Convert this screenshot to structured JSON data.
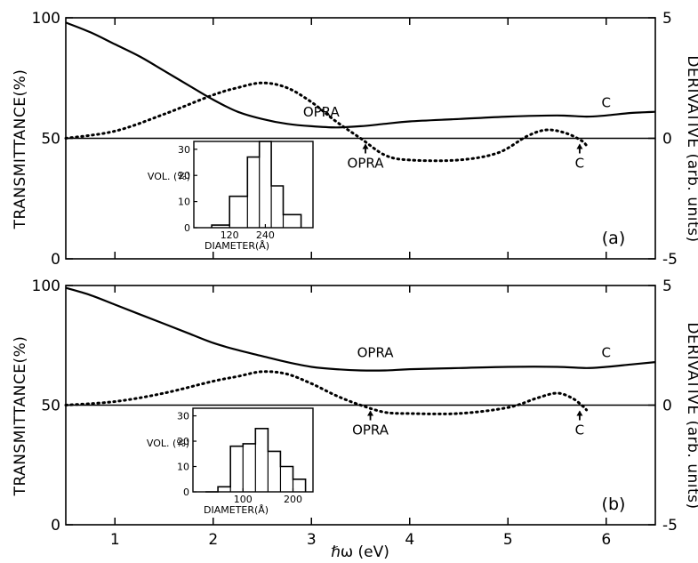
{
  "chart_data": [
    {
      "type": "line",
      "panel_label": "(a)",
      "xlabel": "ℏω (eV)",
      "ylabel": "TRANSMITTANCE(%)",
      "y2label": "DERIVATIVE (arb. units)",
      "xlim": [
        0.5,
        6.5
      ],
      "ylim": [
        0,
        100
      ],
      "y2lim": [
        -5,
        5
      ],
      "xticks": [
        "1",
        "2",
        "3",
        "4",
        "5",
        "6"
      ],
      "yticks": [
        "0",
        "50",
        "100"
      ],
      "y2ticks": [
        "-5",
        "0",
        "5"
      ],
      "series": [
        {
          "style": "solid",
          "axis": "left",
          "x": [
            0.5,
            0.75,
            1.0,
            1.25,
            1.5,
            1.75,
            2.0,
            2.25,
            2.5,
            2.75,
            3.0,
            3.25,
            3.5,
            3.75,
            4.0,
            4.5,
            5.0,
            5.5,
            5.8,
            6.0,
            6.25,
            6.5
          ],
          "y": [
            98,
            94,
            89,
            84,
            78,
            72,
            66,
            61,
            58,
            56,
            55,
            54.5,
            55,
            56,
            57,
            58,
            59,
            59.5,
            59,
            59.5,
            60.5,
            61
          ]
        },
        {
          "style": "dotted",
          "axis": "right",
          "x": [
            0.5,
            1.0,
            1.5,
            2.0,
            2.25,
            2.5,
            2.75,
            3.0,
            3.25,
            3.5,
            3.75,
            4.0,
            4.5,
            4.9,
            5.2,
            5.4,
            5.6,
            5.75,
            5.8
          ],
          "y": [
            0,
            0.3,
            1.0,
            1.8,
            2.1,
            2.3,
            2.1,
            1.5,
            0.7,
            0,
            -0.7,
            -0.9,
            -0.9,
            -0.6,
            0.1,
            0.35,
            0.2,
            -0.1,
            -0.3
          ]
        },
        {
          "style": "solid",
          "axis": "right",
          "x": [
            0.5,
            6.5
          ],
          "y": [
            0,
            0
          ]
        }
      ],
      "annotations": [
        {
          "text": "OPRA",
          "x": 3.1,
          "y": 59,
          "axis": "left"
        },
        {
          "text": "C",
          "x": 6.0,
          "y": 63,
          "axis": "left"
        },
        {
          "text": "OPRA",
          "x": 3.55,
          "y": 47,
          "axis": "left",
          "arrow_x": 3.55
        },
        {
          "text": "C",
          "x": 5.73,
          "y": 47,
          "axis": "left",
          "arrow_x": 5.73
        }
      ],
      "inset": {
        "type": "histogram",
        "ylabel": "VOL. (%)",
        "xlabel": "DIAMETER(Å)",
        "xticks": [
          "120",
          "240"
        ],
        "yticks": [
          "0",
          "10",
          "20",
          "30"
        ],
        "xlim": [
          0,
          400
        ],
        "ylim": [
          0,
          33
        ],
        "bins": [
          [
            60,
            120,
            1
          ],
          [
            120,
            180,
            12
          ],
          [
            180,
            220,
            27
          ],
          [
            220,
            260,
            33
          ],
          [
            260,
            300,
            16
          ],
          [
            300,
            360,
            5
          ]
        ]
      }
    },
    {
      "type": "line",
      "panel_label": "(b)",
      "xlabel": "ℏω (eV)",
      "ylabel": "TRANSMITTANCE(%)",
      "y2label": "DERIVATIVE (arb. units)",
      "xlim": [
        0.5,
        6.5
      ],
      "ylim": [
        0,
        100
      ],
      "y2lim": [
        -5,
        5
      ],
      "xticks": [
        "1",
        "2",
        "3",
        "4",
        "5",
        "6"
      ],
      "yticks": [
        "0",
        "50",
        "100"
      ],
      "y2ticks": [
        "-5",
        "0",
        "5"
      ],
      "series": [
        {
          "style": "solid",
          "axis": "left",
          "x": [
            0.5,
            0.75,
            1.0,
            1.25,
            1.5,
            1.75,
            2.0,
            2.25,
            2.5,
            2.75,
            3.0,
            3.25,
            3.5,
            3.75,
            4.0,
            4.5,
            5.0,
            5.5,
            5.8,
            6.0,
            6.25,
            6.5
          ],
          "y": [
            99,
            96,
            92,
            88,
            84,
            80,
            76,
            73,
            70.5,
            68,
            66,
            65,
            64.5,
            64.5,
            65,
            65.5,
            66,
            66,
            65.5,
            66,
            67,
            68
          ]
        },
        {
          "style": "dotted",
          "axis": "right",
          "x": [
            0.5,
            1.0,
            1.5,
            2.0,
            2.25,
            2.5,
            2.75,
            3.0,
            3.25,
            3.5,
            3.75,
            4.0,
            4.5,
            5.0,
            5.3,
            5.5,
            5.65,
            5.75,
            5.8
          ],
          "y": [
            0,
            0.15,
            0.5,
            1.0,
            1.2,
            1.4,
            1.3,
            0.9,
            0.4,
            0,
            -0.3,
            -0.35,
            -0.35,
            -0.1,
            0.3,
            0.5,
            0.3,
            0,
            -0.2
          ]
        },
        {
          "style": "solid",
          "axis": "right",
          "x": [
            0.5,
            6.5
          ],
          "y": [
            0,
            0
          ]
        }
      ],
      "annotations": [
        {
          "text": "OPRA",
          "x": 3.65,
          "y": 70,
          "axis": "left"
        },
        {
          "text": "C",
          "x": 6.0,
          "y": 70,
          "axis": "left"
        },
        {
          "text": "OPRA",
          "x": 3.6,
          "y": 42,
          "axis": "left",
          "arrow_x": 3.6
        },
        {
          "text": "C",
          "x": 5.73,
          "y": 42,
          "axis": "left",
          "arrow_x": 5.73
        }
      ],
      "inset": {
        "type": "histogram",
        "ylabel": "VOL. (%)",
        "xlabel": "DIAMETER(Å)",
        "xticks": [
          "100",
          "200"
        ],
        "yticks": [
          "0",
          "10",
          "20",
          "30"
        ],
        "xlim": [
          0,
          240
        ],
        "ylim": [
          0,
          33
        ],
        "bins": [
          [
            25,
            50,
            0
          ],
          [
            50,
            75,
            2
          ],
          [
            75,
            100,
            18
          ],
          [
            100,
            125,
            19
          ],
          [
            125,
            150,
            25
          ],
          [
            150,
            175,
            16
          ],
          [
            175,
            200,
            10
          ],
          [
            200,
            225,
            5
          ]
        ]
      }
    }
  ]
}
